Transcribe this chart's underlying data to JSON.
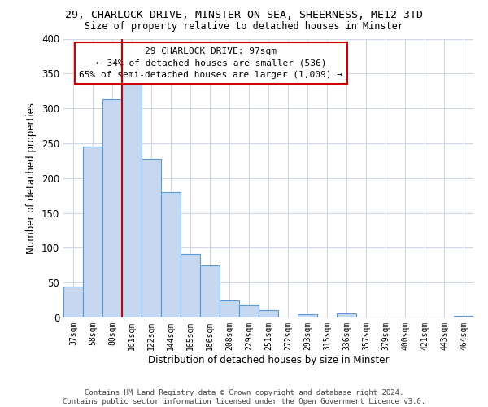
{
  "title_line1": "29, CHARLOCK DRIVE, MINSTER ON SEA, SHEERNESS, ME12 3TD",
  "title_line2": "Size of property relative to detached houses in Minster",
  "xlabel": "Distribution of detached houses by size in Minster",
  "ylabel": "Number of detached properties",
  "bar_labels": [
    "37sqm",
    "58sqm",
    "80sqm",
    "101sqm",
    "122sqm",
    "144sqm",
    "165sqm",
    "186sqm",
    "208sqm",
    "229sqm",
    "251sqm",
    "272sqm",
    "293sqm",
    "315sqm",
    "336sqm",
    "357sqm",
    "379sqm",
    "400sqm",
    "421sqm",
    "443sqm",
    "464sqm"
  ],
  "bar_values": [
    44,
    245,
    313,
    335,
    228,
    180,
    91,
    75,
    25,
    18,
    10,
    0,
    5,
    0,
    6,
    0,
    0,
    0,
    0,
    0,
    2
  ],
  "bar_color": "#c5d8f0",
  "bar_edge_color": "#5b9bd5",
  "vline_color": "#cc0000",
  "annotation_title": "29 CHARLOCK DRIVE: 97sqm",
  "annotation_line1": "← 34% of detached houses are smaller (536)",
  "annotation_line2": "65% of semi-detached houses are larger (1,009) →",
  "annotation_box_color": "#ffffff",
  "annotation_box_edge": "#cc0000",
  "ylim": [
    0,
    400
  ],
  "yticks": [
    0,
    50,
    100,
    150,
    200,
    250,
    300,
    350,
    400
  ],
  "footer_line1": "Contains HM Land Registry data © Crown copyright and database right 2024.",
  "footer_line2": "Contains public sector information licensed under the Open Government Licence v3.0.",
  "bg_color": "#ffffff",
  "grid_color": "#d0d8e8"
}
